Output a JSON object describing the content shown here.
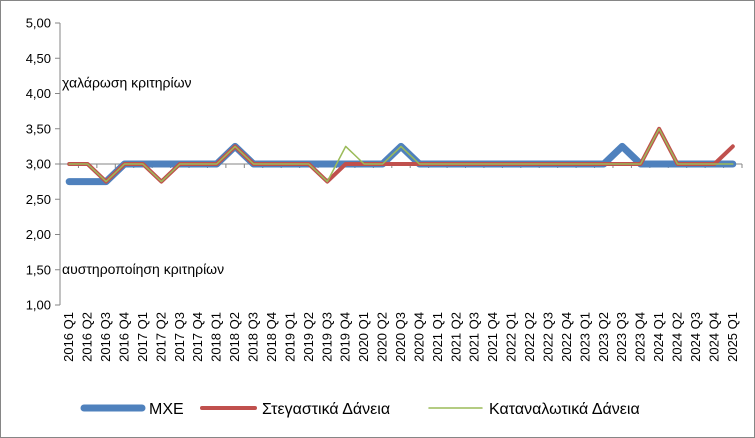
{
  "chart_data": {
    "type": "line",
    "title": "",
    "xlabel": "",
    "ylabel": "",
    "ylim": [
      1,
      5
    ],
    "yticks": [
      "1,00",
      "1,50",
      "2,00",
      "2,50",
      "3,00",
      "3,50",
      "4,00",
      "4,50",
      "5,00"
    ],
    "grid": false,
    "legend_position": "bottom",
    "categories": [
      "2016 Q1",
      "2016 Q2",
      "2016 Q3",
      "2016 Q4",
      "2017 Q1",
      "2017 Q2",
      "2017 Q3",
      "2017 Q4",
      "2018 Q1",
      "2018 Q2",
      "2018 Q3",
      "2018 Q4",
      "2019 Q1",
      "2019 Q2",
      "2019 Q3",
      "2019 Q4",
      "2020 Q1",
      "2020 Q2",
      "2020 Q3",
      "2020 Q4",
      "2021 Q1",
      "2021 Q2",
      "2021 Q3",
      "2021 Q4",
      "2022 Q1",
      "2022 Q2",
      "2022 Q3",
      "2022 Q4",
      "2023 Q1",
      "2023 Q2",
      "2023 Q3",
      "2023 Q4",
      "2024 Q1",
      "2024 Q2",
      "2024 Q3",
      "2024 Q4",
      "2025 Q1"
    ],
    "annotations": [
      "χαλάρωση κριτηρίων",
      "αυστηροποίηση κριτηρίων"
    ],
    "series": [
      {
        "name": "MXE",
        "color": "#4f81bd",
        "values": [
          2.75,
          2.75,
          2.75,
          3.0,
          3.0,
          3.0,
          3.0,
          3.0,
          3.0,
          3.25,
          3.0,
          3.0,
          3.0,
          3.0,
          3.0,
          3.0,
          3.0,
          3.0,
          3.25,
          3.0,
          3.0,
          3.0,
          3.0,
          3.0,
          3.0,
          3.0,
          3.0,
          3.0,
          3.0,
          3.0,
          3.25,
          3.0,
          3.0,
          3.0,
          3.0,
          3.0,
          3.0
        ]
      },
      {
        "name": "Στεγαστικά Δάνεια",
        "color": "#c0504d",
        "values": [
          3.0,
          3.0,
          2.75,
          3.0,
          3.0,
          2.75,
          3.0,
          3.0,
          3.0,
          3.25,
          3.0,
          3.0,
          3.0,
          3.0,
          2.75,
          3.0,
          3.0,
          3.0,
          3.0,
          3.0,
          3.0,
          3.0,
          3.0,
          3.0,
          3.0,
          3.0,
          3.0,
          3.0,
          3.0,
          3.0,
          3.0,
          3.0,
          3.5,
          3.0,
          3.0,
          3.0,
          3.25
        ]
      },
      {
        "name": "Καταναλωτικά Δάνεια",
        "color": "#9bbb59",
        "values": [
          3.0,
          3.0,
          2.75,
          3.0,
          3.0,
          2.75,
          3.0,
          3.0,
          3.0,
          3.25,
          3.0,
          3.0,
          3.0,
          3.0,
          2.75,
          3.25,
          3.0,
          3.0,
          3.25,
          3.0,
          3.0,
          3.0,
          3.0,
          3.0,
          3.0,
          3.0,
          3.0,
          3.0,
          3.0,
          3.0,
          3.0,
          3.0,
          3.5,
          3.0,
          3.0,
          3.0,
          3.0
        ]
      }
    ]
  }
}
